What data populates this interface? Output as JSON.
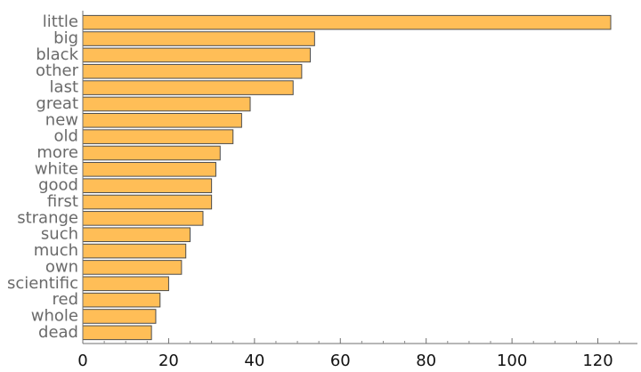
{
  "chart_data": {
    "type": "bar",
    "orientation": "horizontal",
    "categories": [
      "little",
      "big",
      "black",
      "other",
      "last",
      "great",
      "new",
      "old",
      "more",
      "white",
      "good",
      "first",
      "strange",
      "such",
      "much",
      "own",
      "scientific",
      "red",
      "whole",
      "dead"
    ],
    "values": [
      123,
      54,
      53,
      51,
      49,
      39,
      37,
      35,
      32,
      31,
      30,
      30,
      28,
      25,
      24,
      23,
      20,
      18,
      17,
      16
    ],
    "title": "",
    "xlabel": "",
    "ylabel": "",
    "xlim": [
      0,
      129
    ],
    "xticks": [
      0,
      20,
      40,
      60,
      80,
      100,
      120
    ],
    "xtick_labels": [
      "0",
      "20",
      "40",
      "60",
      "80",
      "100",
      "120"
    ],
    "grid": false,
    "legend": "none",
    "bar_color": "#ffbe57",
    "bar_edge_color": "#4d4d4d"
  }
}
